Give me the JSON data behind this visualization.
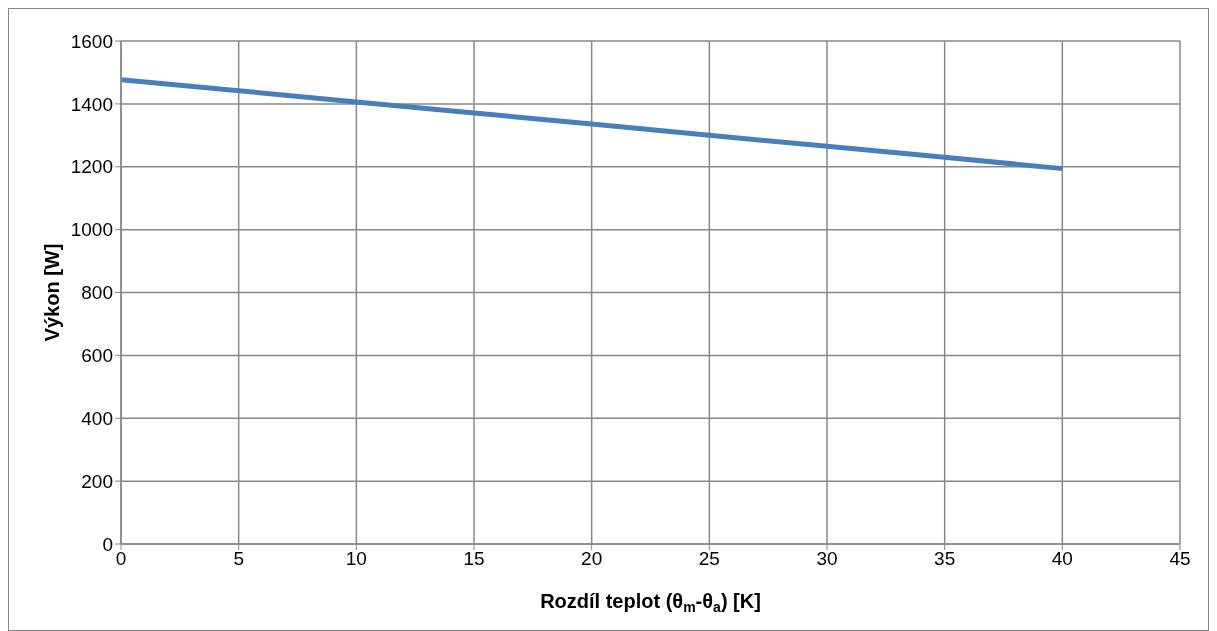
{
  "chart_data": {
    "type": "line",
    "xlabel": "Rozdíl teplot (θ$_{m}$-θ$_{a}$) [K]",
    "ylabel": "Výkon [W]",
    "x": [
      0,
      5,
      10,
      15,
      20,
      25,
      30,
      35,
      40
    ],
    "series": [
      {
        "color": "#4a7ebb",
        "values": [
          1477,
          1442,
          1406,
          1371,
          1336,
          1300,
          1265,
          1230,
          1194
        ]
      }
    ],
    "xlim": [
      0,
      45
    ],
    "xticks": [
      0,
      5,
      10,
      15,
      20,
      25,
      30,
      35,
      40,
      45
    ],
    "ylim": [
      0,
      1600
    ],
    "yticks": [
      0,
      200,
      400,
      600,
      800,
      1000,
      1200,
      1400,
      1600
    ],
    "grid": true,
    "legend": false,
    "marker": "none",
    "line_style": "solid"
  }
}
